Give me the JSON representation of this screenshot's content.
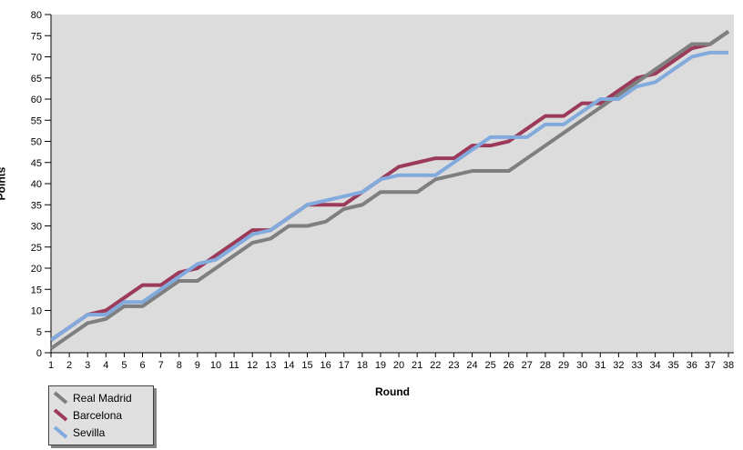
{
  "chart_data": {
    "type": "line",
    "title": "",
    "xlabel": "Round",
    "ylabel": "Points",
    "xlim": [
      1,
      38
    ],
    "ylim": [
      0,
      80
    ],
    "grid": false,
    "legend_position": "bottom-left",
    "plot_bg_color": "#dcdcdc",
    "axis_color": "#000000",
    "x": [
      1,
      2,
      3,
      4,
      5,
      6,
      7,
      8,
      9,
      10,
      11,
      12,
      13,
      14,
      15,
      16,
      17,
      18,
      19,
      20,
      21,
      22,
      23,
      24,
      25,
      26,
      27,
      28,
      29,
      30,
      31,
      32,
      33,
      34,
      35,
      36,
      37,
      38
    ],
    "x_ticks": [
      1,
      2,
      3,
      4,
      5,
      6,
      7,
      8,
      9,
      10,
      11,
      12,
      13,
      14,
      15,
      16,
      17,
      18,
      19,
      20,
      21,
      22,
      23,
      24,
      25,
      26,
      27,
      28,
      29,
      30,
      31,
      32,
      33,
      34,
      35,
      36,
      37,
      38
    ],
    "y_ticks": [
      0,
      5,
      10,
      15,
      20,
      25,
      30,
      35,
      40,
      45,
      50,
      55,
      60,
      65,
      70,
      75,
      80
    ],
    "series": [
      {
        "name": "Real Madrid",
        "color": "#7f7f7f",
        "values": [
          1,
          4,
          7,
          8,
          11,
          11,
          14,
          17,
          17,
          20,
          23,
          26,
          27,
          30,
          30,
          31,
          34,
          35,
          38,
          38,
          38,
          41,
          42,
          43,
          43,
          43,
          46,
          49,
          52,
          55,
          58,
          61,
          64,
          67,
          70,
          73,
          73,
          76
        ]
      },
      {
        "name": "Barcelona",
        "color": "#9c3a59",
        "values": [
          3,
          6,
          9,
          10,
          13,
          16,
          16,
          19,
          20,
          23,
          26,
          29,
          29,
          32,
          35,
          35,
          35,
          38,
          41,
          44,
          45,
          46,
          46,
          49,
          49,
          50,
          53,
          56,
          56,
          59,
          59,
          62,
          65,
          66,
          69,
          72,
          73,
          76
        ]
      },
      {
        "name": "Sevilla",
        "color": "#82aadc",
        "values": [
          3,
          6,
          9,
          9,
          12,
          12,
          15,
          18,
          21,
          22,
          25,
          28,
          29,
          32,
          35,
          36,
          37,
          38,
          41,
          42,
          42,
          42,
          45,
          48,
          51,
          51,
          51,
          54,
          54,
          57,
          60,
          60,
          63,
          64,
          67,
          70,
          71,
          71
        ]
      }
    ],
    "draw_order": [
      "Barcelona",
      "Real Madrid",
      "Sevilla"
    ]
  }
}
